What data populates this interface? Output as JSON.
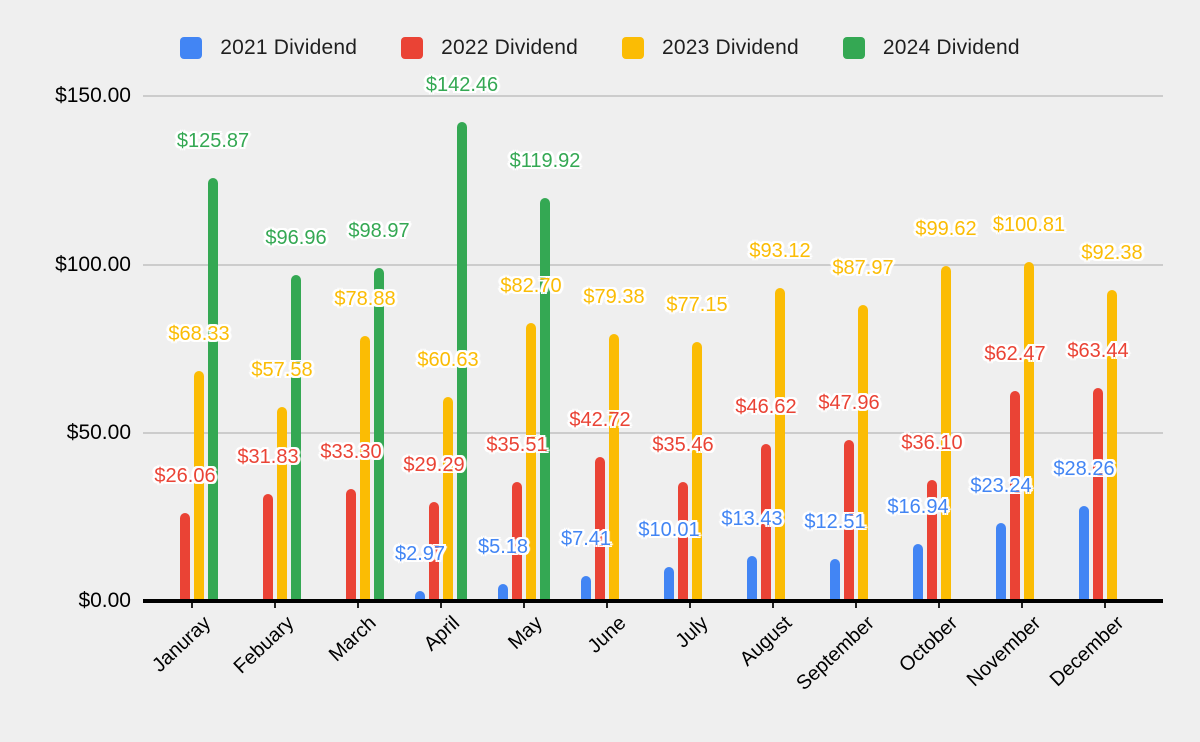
{
  "chart_data": {
    "type": "bar",
    "title": "",
    "categories": [
      "Januray",
      "Febuary",
      "March",
      "April",
      "May",
      "June",
      "July",
      "August",
      "September",
      "October",
      "November",
      "December"
    ],
    "series": [
      {
        "name": "2021 Dividend",
        "color": "#4285F4",
        "values": [
          null,
          null,
          null,
          2.97,
          5.18,
          7.41,
          10.01,
          13.43,
          12.51,
          16.94,
          23.24,
          28.26
        ]
      },
      {
        "name": "2022 Dividend",
        "color": "#EA4335",
        "values": [
          26.06,
          31.83,
          33.3,
          29.29,
          35.51,
          42.72,
          35.46,
          46.62,
          47.96,
          36.1,
          62.47,
          63.44
        ]
      },
      {
        "name": "2023 Dividend",
        "color": "#FBBC04",
        "values": [
          68.33,
          57.58,
          78.88,
          60.63,
          82.7,
          79.38,
          77.15,
          93.12,
          87.97,
          99.62,
          100.81,
          92.38
        ]
      },
      {
        "name": "2024 Dividend",
        "color": "#34A853",
        "values": [
          125.87,
          96.96,
          98.97,
          142.46,
          119.92,
          null,
          null,
          null,
          null,
          null,
          null,
          null
        ]
      }
    ],
    "y_axis": {
      "ylim": [
        0,
        150
      ],
      "tick_values": [
        0,
        50,
        100,
        150
      ],
      "tick_labels": [
        "$0.00",
        "$50.00",
        "$100.00",
        "$150.00"
      ]
    },
    "legend_position": "top",
    "grid": true,
    "value_label_prefix": "$",
    "value_label_decimals": 2
  }
}
